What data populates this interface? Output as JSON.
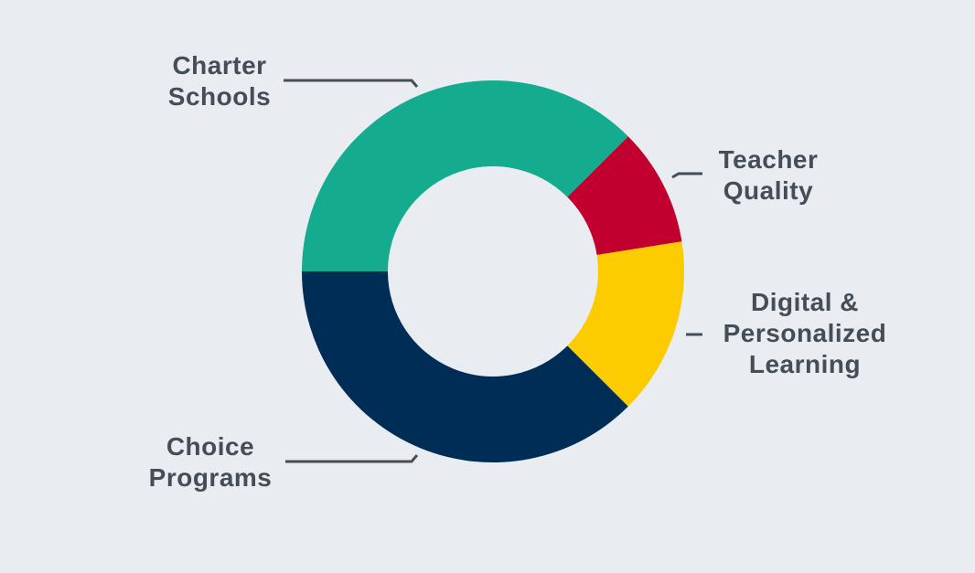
{
  "chart_data": {
    "type": "donut",
    "categories": [
      "Charter Schools",
      "Teacher Quality",
      "Digital & Personalized Learning",
      "Choice Programs"
    ],
    "values": [
      37.5,
      10,
      15,
      37.5
    ],
    "colors": [
      "#14ab8f",
      "#c1002f",
      "#fccb00",
      "#002d55"
    ]
  }
}
